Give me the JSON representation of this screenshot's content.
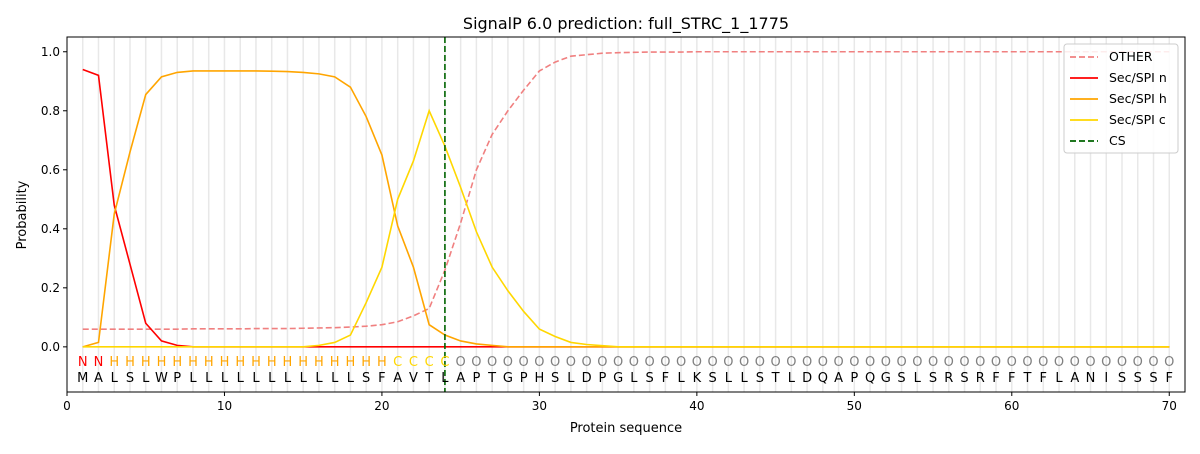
{
  "chart_data": {
    "type": "line",
    "title": "SignalP 6.0 prediction: full_STRC_1_1775",
    "xlabel": "Protein sequence",
    "ylabel": "Probability",
    "xlim": [
      0,
      71
    ],
    "ylim": [
      -0.153,
      1.05
    ],
    "xticks": [
      0,
      10,
      20,
      30,
      40,
      50,
      60,
      70
    ],
    "yticks": [
      0.0,
      0.2,
      0.4,
      0.6,
      0.8,
      1.0
    ],
    "ytick_labels": [
      "0.0",
      "0.2",
      "0.4",
      "0.6",
      "0.8",
      "1.0"
    ],
    "legend_position": "top-right",
    "sequence": [
      "M",
      "A",
      "L",
      "S",
      "L",
      "W",
      "P",
      "L",
      "L",
      "L",
      "L",
      "L",
      "L",
      "L",
      "L",
      "L",
      "L",
      "L",
      "S",
      "F",
      "A",
      "V",
      "T",
      "L",
      "A",
      "P",
      "T",
      "G",
      "P",
      "H",
      "S",
      "L",
      "D",
      "P",
      "G",
      "L",
      "S",
      "F",
      "L",
      "K",
      "S",
      "L",
      "L",
      "S",
      "T",
      "L",
      "D",
      "Q",
      "A",
      "P",
      "Q",
      "G",
      "S",
      "L",
      "S",
      "R",
      "S",
      "R",
      "F",
      "F",
      "T",
      "F",
      "L",
      "A",
      "N",
      "I",
      "S",
      "S",
      "S",
      "F"
    ],
    "labels": [
      "N",
      "N",
      "H",
      "H",
      "H",
      "H",
      "H",
      "H",
      "H",
      "H",
      "H",
      "H",
      "H",
      "H",
      "H",
      "H",
      "H",
      "H",
      "H",
      "H",
      "C",
      "C",
      "C",
      "C",
      "O",
      "O",
      "O",
      "O",
      "O",
      "O",
      "O",
      "O",
      "O",
      "O",
      "O",
      "O",
      "O",
      "O",
      "O",
      "O",
      "O",
      "O",
      "O",
      "O",
      "O",
      "O",
      "O",
      "O",
      "O",
      "O",
      "O",
      "O",
      "O",
      "O",
      "O",
      "O",
      "O",
      "O",
      "O",
      "O",
      "O",
      "O",
      "O",
      "O",
      "O",
      "O",
      "O",
      "O",
      "O",
      "O"
    ],
    "label_colors": {
      "N": "#ff0000",
      "H": "#ffa500",
      "C": "#ffd700",
      "O": "#808080"
    },
    "series": [
      {
        "name": "OTHER",
        "color": "#f08080",
        "dash": true,
        "values": [
          0.06,
          0.06,
          0.06,
          0.06,
          0.06,
          0.06,
          0.06,
          0.061,
          0.061,
          0.061,
          0.061,
          0.062,
          0.062,
          0.062,
          0.063,
          0.064,
          0.065,
          0.067,
          0.07,
          0.075,
          0.085,
          0.105,
          0.13,
          0.26,
          0.42,
          0.6,
          0.72,
          0.8,
          0.87,
          0.935,
          0.965,
          0.985,
          0.99,
          0.995,
          0.997,
          0.998,
          0.999,
          0.999,
          0.999,
          1,
          1,
          1,
          1,
          1,
          1,
          1,
          1,
          1,
          1,
          1,
          1,
          1,
          1,
          1,
          1,
          1,
          1,
          1,
          1,
          1,
          1,
          1,
          1,
          1,
          1,
          1,
          1,
          1,
          1,
          1
        ]
      },
      {
        "name": "Sec/SPI n",
        "color": "#ff0000",
        "dash": false,
        "values": [
          0.94,
          0.92,
          0.48,
          0.28,
          0.08,
          0.02,
          0.005,
          0,
          0,
          0,
          0,
          0,
          0,
          0,
          0,
          0,
          0,
          0,
          0,
          0,
          0,
          0,
          0,
          0,
          0,
          0,
          0,
          0,
          0,
          0,
          0,
          0,
          0,
          0,
          0,
          0,
          0,
          0,
          0,
          0,
          0,
          0,
          0,
          0,
          0,
          0,
          0,
          0,
          0,
          0,
          0,
          0,
          0,
          0,
          0,
          0,
          0,
          0,
          0,
          0,
          0,
          0,
          0,
          0,
          0,
          0,
          0,
          0,
          0,
          0
        ]
      },
      {
        "name": "Sec/SPI h",
        "color": "#ffa500",
        "dash": false,
        "values": [
          0,
          0.015,
          0.45,
          0.66,
          0.855,
          0.915,
          0.93,
          0.935,
          0.935,
          0.935,
          0.935,
          0.935,
          0.934,
          0.933,
          0.93,
          0.925,
          0.915,
          0.88,
          0.78,
          0.65,
          0.41,
          0.27,
          0.075,
          0.04,
          0.02,
          0.01,
          0.005,
          0,
          0,
          0,
          0,
          0,
          0,
          0,
          0,
          0,
          0,
          0,
          0,
          0,
          0,
          0,
          0,
          0,
          0,
          0,
          0,
          0,
          0,
          0,
          0,
          0,
          0,
          0,
          0,
          0,
          0,
          0,
          0,
          0,
          0,
          0,
          0,
          0,
          0,
          0,
          0,
          0,
          0,
          0
        ]
      },
      {
        "name": "Sec/SPI c",
        "color": "#ffd700",
        "dash": false,
        "values": [
          0,
          0,
          0,
          0,
          0,
          0,
          0,
          0,
          0,
          0,
          0,
          0,
          0,
          0,
          0,
          0.005,
          0.015,
          0.04,
          0.15,
          0.27,
          0.5,
          0.63,
          0.8,
          0.68,
          0.54,
          0.39,
          0.27,
          0.19,
          0.12,
          0.06,
          0.035,
          0.015,
          0.008,
          0.004,
          0,
          0,
          0,
          0,
          0,
          0,
          0,
          0,
          0,
          0,
          0,
          0,
          0,
          0,
          0,
          0,
          0,
          0,
          0,
          0,
          0,
          0,
          0,
          0,
          0,
          0,
          0,
          0,
          0,
          0,
          0,
          0,
          0,
          0,
          0,
          0
        ]
      }
    ],
    "cs": {
      "name": "CS",
      "position": 24,
      "color": "#006400"
    }
  }
}
